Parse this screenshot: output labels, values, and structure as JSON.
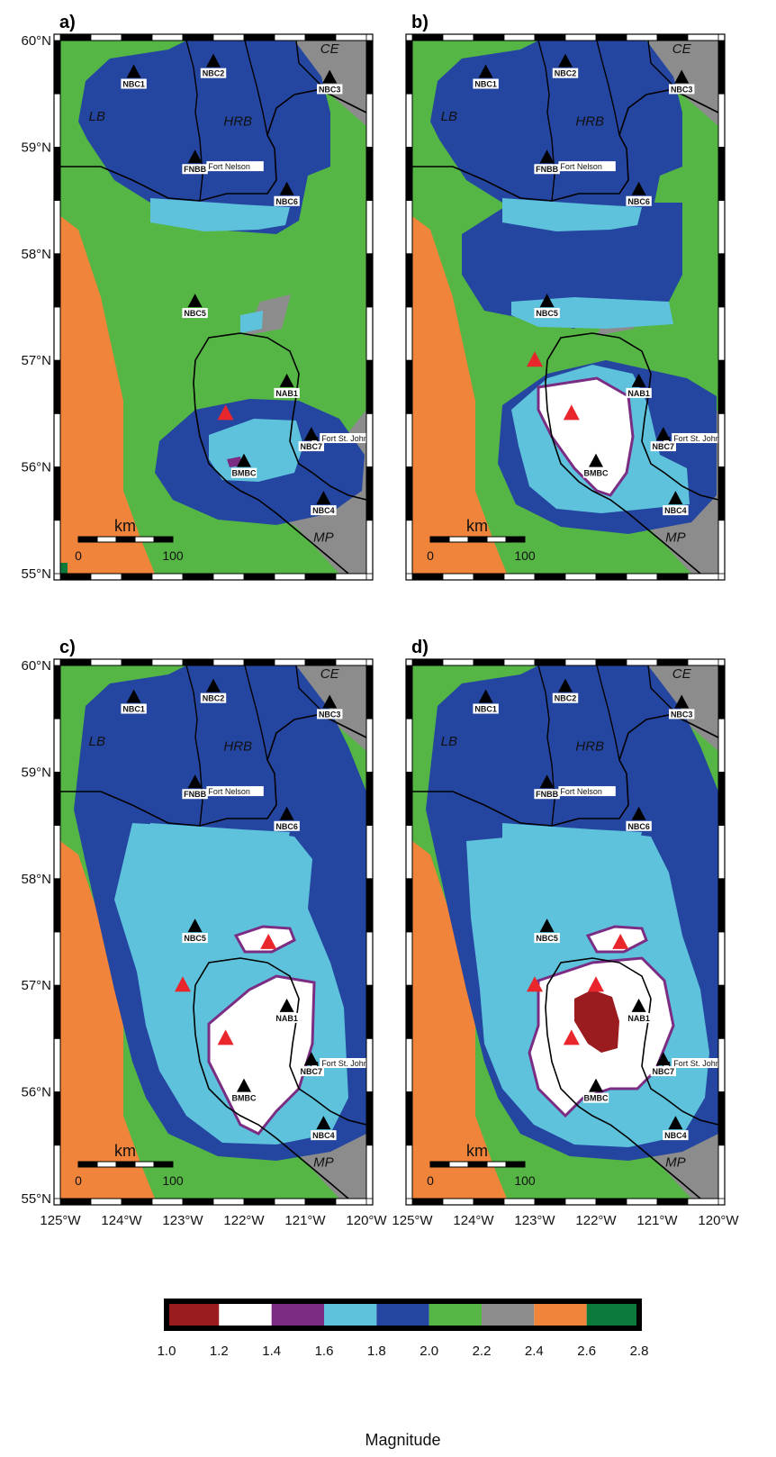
{
  "panels": [
    {
      "letter": "a)",
      "blobs": [],
      "red_triangles": [
        [
          -122.3,
          56.5
        ]
      ]
    },
    {
      "letter": "b)",
      "blobs": [
        "b_white"
      ],
      "red_triangles": [
        [
          -123.0,
          57.0
        ],
        [
          -122.4,
          56.5
        ]
      ]
    },
    {
      "letter": "c)",
      "blobs": [
        "c_white",
        "c_small"
      ],
      "red_triangles": [
        [
          -123.0,
          57.0
        ],
        [
          -121.6,
          57.4
        ],
        [
          -122.3,
          56.5
        ]
      ]
    },
    {
      "letter": "d)",
      "blobs": [
        "d_white",
        "d_small",
        "d_red"
      ],
      "red_triangles": [
        [
          -123.0,
          57.0
        ],
        [
          -121.6,
          57.4
        ],
        [
          -122.0,
          57.0
        ],
        [
          -122.4,
          56.5
        ]
      ]
    }
  ],
  "lat_labels": [
    "60°N",
    "59°N",
    "58°N",
    "57°N",
    "56°N",
    "55°N"
  ],
  "lon_labels": [
    "125°W",
    "124°W",
    "123°W",
    "122°W",
    "121°W",
    "120°W"
  ],
  "stations": [
    {
      "name": "NBC1",
      "lon": -123.8,
      "lat": 59.7
    },
    {
      "name": "NBC2",
      "lon": -122.5,
      "lat": 59.8
    },
    {
      "name": "NBC3",
      "lon": -120.6,
      "lat": 59.65
    },
    {
      "name": "FNBB",
      "lon": -122.8,
      "lat": 58.9
    },
    {
      "name": "NBC6",
      "lon": -121.3,
      "lat": 58.6
    },
    {
      "name": "NBC5",
      "lon": -122.8,
      "lat": 57.55
    },
    {
      "name": "NAB1",
      "lon": -121.3,
      "lat": 56.8
    },
    {
      "name": "NBC7",
      "lon": -120.9,
      "lat": 56.3
    },
    {
      "name": "BMBC",
      "lon": -122.0,
      "lat": 56.05
    },
    {
      "name": "NBC4",
      "lon": -120.7,
      "lat": 55.7
    }
  ],
  "towns": [
    {
      "name": "Fort Nelson",
      "lon": -122.7,
      "lat": 58.8
    },
    {
      "name": "Fort St. John",
      "lon": -120.85,
      "lat": 56.25
    }
  ],
  "regions": [
    {
      "name": "LB",
      "lon": -124.4,
      "lat": 59.25
    },
    {
      "name": "HRB",
      "lon": -122.1,
      "lat": 59.2
    },
    {
      "name": "CE",
      "lon": -120.6,
      "lat": 59.88
    },
    {
      "name": "MP",
      "lon": -120.7,
      "lat": 55.3
    }
  ],
  "scalebar": {
    "unit": "km",
    "start": "0",
    "end": "100"
  },
  "colorbar": {
    "title": "Magnitude",
    "ticks": [
      "1.0",
      "1.2",
      "1.4",
      "1.6",
      "1.8",
      "2.0",
      "2.2",
      "2.4",
      "2.6",
      "2.8"
    ],
    "colors": [
      "#9b1c1f",
      "#ffffff",
      "#7b2d84",
      "#5ec2dc",
      "#2546a0",
      "#55b645",
      "#8c8c8c",
      "#f0843a",
      "#0b7a3a"
    ]
  },
  "palette": {
    "green": "#55b645",
    "gray": "#8c8c8c",
    "orange": "#f0843a",
    "blue": "#2546a0",
    "cyan": "#5ec2dc",
    "white": "#ffffff",
    "purple": "#7b2d84",
    "darkred": "#9b1c1f",
    "dkgreen": "#0b7a3a",
    "red_marker": "#e8262c"
  },
  "icons": {
    "station": "black-triangle-icon",
    "event": "red-triangle-icon",
    "town": "square-icon"
  }
}
